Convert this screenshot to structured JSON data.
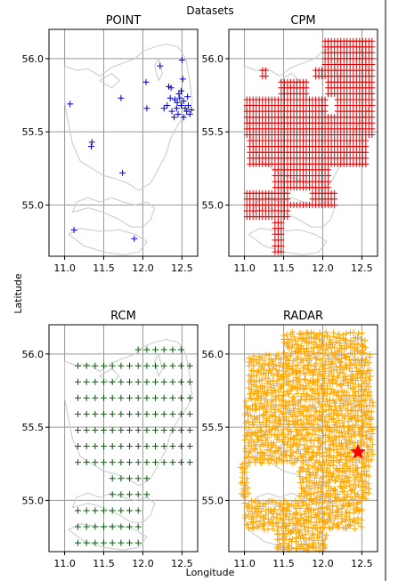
{
  "figure": {
    "suptitle": "Datasets",
    "xlabel": "Longitude",
    "ylabel": "Latitude"
  },
  "chart_data": [
    {
      "type": "scatter",
      "title": "POINT",
      "xlim": [
        10.8,
        12.7
      ],
      "ylim": [
        54.65,
        56.2
      ],
      "xticks": [
        "11.0",
        "11.5",
        "12.0",
        "12.5"
      ],
      "yticks": [
        "55.0",
        "55.5",
        "56.0"
      ],
      "grid": true,
      "marker": "+",
      "color": "#0000cc",
      "points": [
        [
          11.07,
          55.69
        ],
        [
          11.35,
          55.43
        ],
        [
          11.34,
          55.4
        ],
        [
          11.12,
          54.83
        ],
        [
          11.72,
          55.73
        ],
        [
          11.74,
          55.22
        ],
        [
          11.89,
          54.77
        ],
        [
          12.04,
          55.84
        ],
        [
          12.05,
          55.66
        ],
        [
          12.22,
          55.95
        ],
        [
          12.33,
          55.81
        ],
        [
          12.36,
          55.8
        ],
        [
          12.41,
          55.72
        ],
        [
          12.46,
          55.76
        ],
        [
          12.5,
          55.99
        ],
        [
          12.51,
          55.86
        ],
        [
          12.27,
          55.66
        ],
        [
          12.31,
          55.68
        ],
        [
          12.37,
          55.64
        ],
        [
          12.44,
          55.7
        ],
        [
          12.47,
          55.73
        ],
        [
          12.49,
          55.68
        ],
        [
          12.52,
          55.71
        ],
        [
          12.54,
          55.66
        ],
        [
          12.56,
          55.64
        ],
        [
          12.58,
          55.68
        ],
        [
          12.6,
          55.62
        ],
        [
          12.62,
          55.65
        ],
        [
          12.45,
          55.62
        ],
        [
          12.4,
          55.6
        ],
        [
          12.52,
          55.6
        ],
        [
          12.57,
          55.74
        ],
        [
          12.35,
          55.73
        ],
        [
          12.49,
          55.78
        ],
        [
          12.43,
          55.66
        ]
      ]
    },
    {
      "type": "scatter",
      "title": "CPM",
      "xlim": [
        10.8,
        12.7
      ],
      "ylim": [
        54.65,
        56.2
      ],
      "xticks": [
        "11.0",
        "11.5",
        "12.0",
        "12.5"
      ],
      "yticks": [
        "55.0",
        "55.5",
        "56.0"
      ],
      "grid": true,
      "marker": "+",
      "color": "#dd0000",
      "grid_step": 0.04
    },
    {
      "type": "scatter",
      "title": "RCM",
      "xlim": [
        10.8,
        12.7
      ],
      "ylim": [
        54.65,
        56.2
      ],
      "xticks": [
        "11.0",
        "11.5",
        "12.0",
        "12.5"
      ],
      "yticks": [
        "55.0",
        "55.5",
        "56.0"
      ],
      "grid": true,
      "marker": "+",
      "color": "#006400",
      "grid_step": 0.11
    },
    {
      "type": "scatter",
      "title": "RADAR",
      "xlim": [
        10.8,
        12.7
      ],
      "ylim": [
        54.65,
        56.2
      ],
      "xticks": [
        "11.0",
        "11.5",
        "12.0",
        "12.5"
      ],
      "yticks": [
        "55.0",
        "55.5",
        "56.0"
      ],
      "grid": true,
      "marker": "+",
      "color": "#ffa500",
      "grid_step": 0.035,
      "star": {
        "x": 12.45,
        "y": 55.33,
        "color": "#ff0000"
      }
    }
  ]
}
